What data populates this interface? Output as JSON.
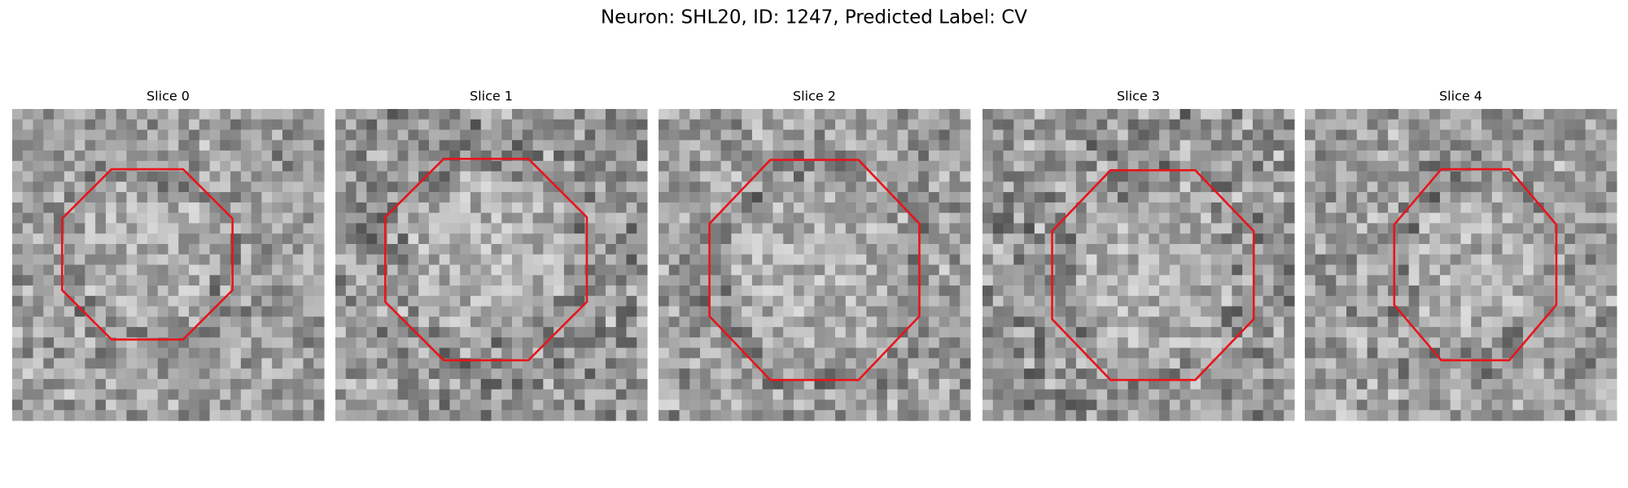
{
  "title": "Neuron: SHL20, ID: 1247, Predicted Label: CV",
  "panels": [
    {
      "title": "Slice 0"
    },
    {
      "title": "Slice 1"
    },
    {
      "title": "Slice 2"
    },
    {
      "title": "Slice 3"
    },
    {
      "title": "Slice 4"
    }
  ]
}
